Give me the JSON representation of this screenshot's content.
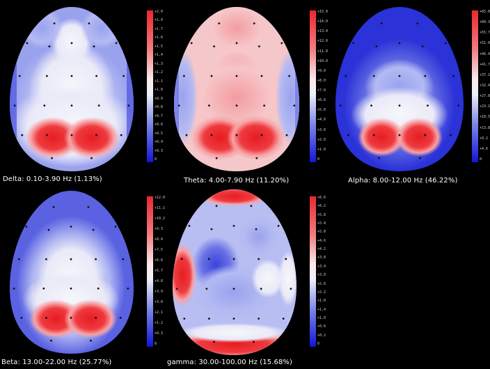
{
  "maps": [
    {
      "id": "delta",
      "caption": "Delta: 0.10-3.90 Hz (1.13%)",
      "colorbar_ticks": [
        "+2.0",
        "+1.9",
        "+1.7",
        "+1.6",
        "+1.5",
        "+1.4",
        "+1.3",
        "+1.2",
        "+1.1",
        "+1.0",
        "+0.9",
        "+0.8",
        "+0.7",
        "+0.6",
        "+0.5",
        "+0.4",
        "+0.3",
        "0"
      ]
    },
    {
      "id": "theta",
      "caption": "Theta: 4.00-7.90 Hz (11.20%)",
      "colorbar_ticks": [
        "+15.0",
        "+14.0",
        "+13.0",
        "+12.0",
        "+11.0",
        "+10.0",
        "+9.0",
        "+8.0",
        "+7.0",
        "+6.0",
        "+5.0",
        "+4.0",
        "+3.0",
        "+2.0",
        "+1.0",
        "0"
      ]
    },
    {
      "id": "alpha",
      "caption": "Alpha: 8.00-12.00 Hz (46.22%)",
      "colorbar_ticks": [
        "+65.0",
        "+60.3",
        "+55.7",
        "+51.0",
        "+46.4",
        "+41.7",
        "+37.1",
        "+32.4",
        "+27.8",
        "+23.1",
        "+18.5",
        "+13.8",
        "+9.2",
        "+4.6",
        "0"
      ]
    },
    {
      "id": "beta",
      "caption": "Beta: 13.00-22.00 Hz (25.77%)",
      "colorbar_ticks": [
        "+12.0",
        "+11.1",
        "+10.2",
        "+9.3",
        "+8.4",
        "+7.5",
        "+6.6",
        "+5.7",
        "+4.8",
        "+3.9",
        "+3.0",
        "+2.1",
        "+1.2",
        "+0.3",
        "0"
      ]
    },
    {
      "id": "gamma",
      "caption": "gamma: 30.00-100.00 Hz (15.68%)",
      "colorbar_ticks": [
        "+6.6",
        "+6.2",
        "+5.8",
        "+5.4",
        "+5.0",
        "+4.6",
        "+4.2",
        "+3.8",
        "+3.4",
        "+3.0",
        "+2.6",
        "+2.2",
        "+1.8",
        "+1.4",
        "+1.0",
        "+0.6",
        "+0.2",
        "0"
      ]
    }
  ],
  "colors": {
    "background": "#000000",
    "high": "#e8282c",
    "mid": "#f4f4fa",
    "low": "#1414d8",
    "electrode": "#111111",
    "caption_text": "#ffffff"
  }
}
